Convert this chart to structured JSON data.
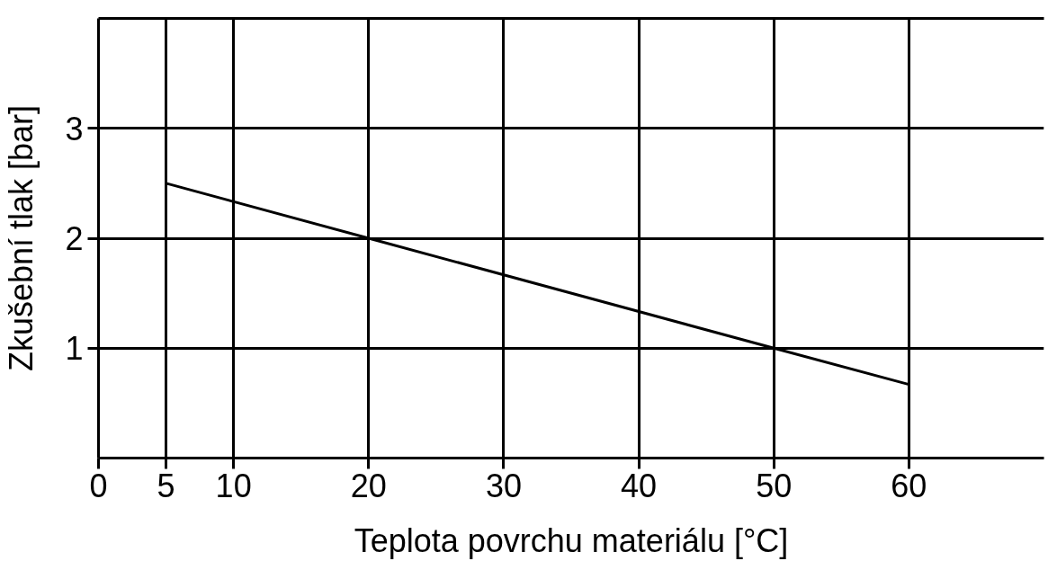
{
  "chart_data": {
    "type": "line",
    "xlabel": "Teplota povrchu materiálu [°C]",
    "ylabel": "Zkušební tlak [bar]",
    "x": [
      5,
      20,
      50,
      60
    ],
    "series": [
      {
        "color": "#000000",
        "values": [
          2.5,
          2,
          1,
          0.67
        ]
      }
    ],
    "xlim": [
      0,
      70
    ],
    "xticks": [
      0,
      5,
      10,
      20,
      30,
      40,
      50,
      60
    ],
    "ylim": [
      0,
      4
    ],
    "yticks": [
      1,
      2,
      3
    ],
    "grid": true,
    "marker": "none",
    "line_style": "solid"
  }
}
